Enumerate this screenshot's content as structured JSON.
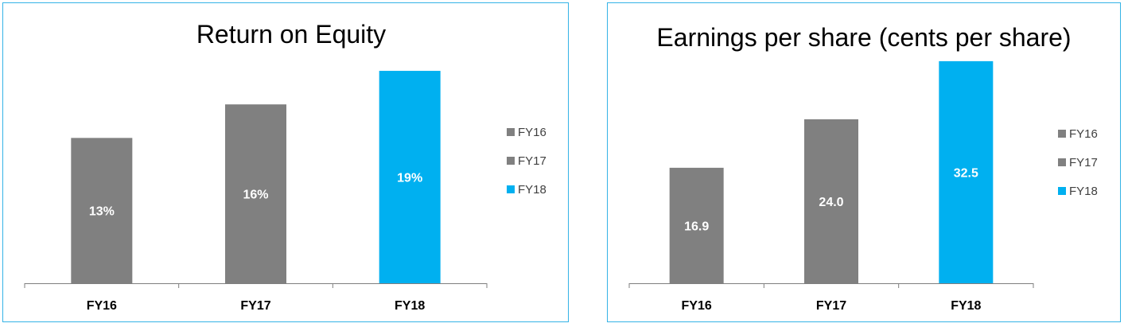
{
  "colors": {
    "border": "#35b3e6",
    "gray": "#808080",
    "accent": "#00b0f0",
    "axis": "#7f7f7f"
  },
  "chart_data": [
    {
      "type": "bar",
      "title": "Return on Equity",
      "categories": [
        "FY16",
        "FY17",
        "FY18"
      ],
      "values": [
        13,
        16,
        19
      ],
      "data_labels": [
        "13%",
        "16%",
        "19%"
      ],
      "bar_colors": [
        "#808080",
        "#808080",
        "#00b0f0"
      ],
      "ylim": [
        0,
        20
      ],
      "grid": false,
      "legend": {
        "placement": "right",
        "entries": [
          "FY16",
          "FY17",
          "FY18"
        ]
      }
    },
    {
      "type": "bar",
      "title": "Earnings per share (cents per share)",
      "categories": [
        "FY16",
        "FY17",
        "FY18"
      ],
      "values": [
        16.9,
        24.0,
        32.5
      ],
      "data_labels": [
        "16.9",
        "24.0",
        "32.5"
      ],
      "bar_colors": [
        "#808080",
        "#808080",
        "#00b0f0"
      ],
      "ylim": [
        0,
        34
      ],
      "grid": false,
      "legend": {
        "placement": "right",
        "entries": [
          "FY16",
          "FY17",
          "FY18"
        ]
      }
    }
  ]
}
